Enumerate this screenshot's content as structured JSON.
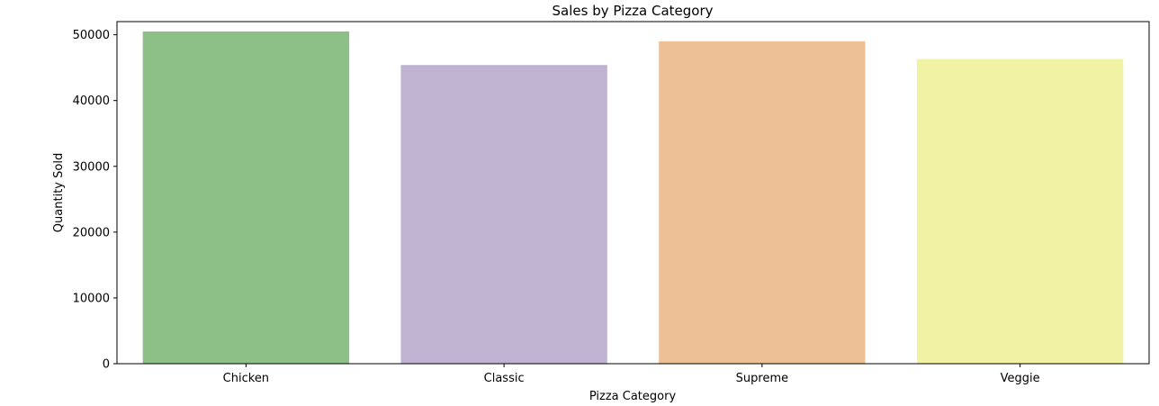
{
  "chart_data": {
    "type": "bar",
    "title": "Sales by Pizza Category",
    "xlabel": "Pizza Category",
    "ylabel": "Quantity Sold",
    "categories": [
      "Chicken",
      "Classic",
      "Supreme",
      "Veggie"
    ],
    "values": [
      50500,
      45400,
      49000,
      46300
    ],
    "colors": [
      "#8cc087",
      "#c0b2d1",
      "#edc096",
      "#f2f2a5"
    ],
    "ylim": [
      0,
      52000
    ],
    "yticks": [
      0,
      10000,
      20000,
      30000,
      40000,
      50000
    ],
    "grid": false,
    "legend": "none"
  }
}
